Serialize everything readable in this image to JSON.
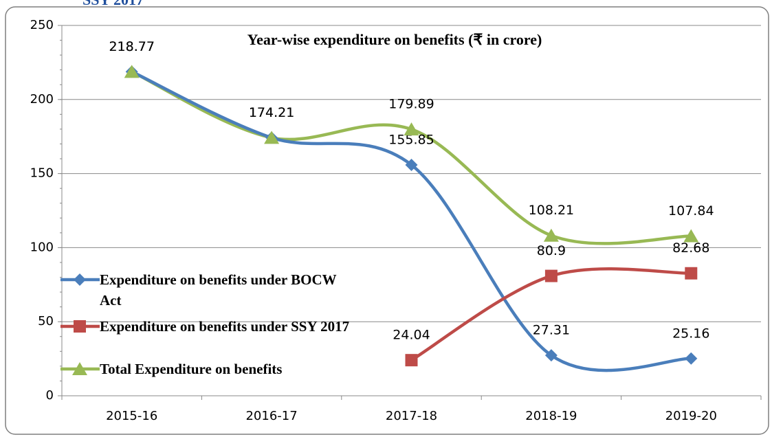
{
  "page_caption": "SSY 2017",
  "chart_data": {
    "type": "line",
    "title": "Year-wise expenditure on benefits (₹ in crore)",
    "categories": [
      "2015-16",
      "2016-17",
      "2017-18",
      "2018-19",
      "2019-20"
    ],
    "series": [
      {
        "name": "Expenditure on benefits under BOCW Act",
        "color": "#4a7ebb",
        "marker": "diamond",
        "values": [
          218.77,
          174.21,
          155.85,
          27.31,
          25.16
        ]
      },
      {
        "name": "Expenditure on benefits under SSY 2017",
        "color": "#be4b48",
        "marker": "square",
        "values": [
          null,
          null,
          24.04,
          80.9,
          82.68
        ]
      },
      {
        "name": "Total Expenditure on benefits",
        "color": "#98b954",
        "marker": "triangle",
        "values": [
          218.77,
          174.21,
          179.89,
          108.21,
          107.84
        ]
      }
    ],
    "ylim": [
      0,
      250
    ],
    "yticks": [
      0,
      50,
      100,
      150,
      200,
      250
    ],
    "grid": true,
    "smooth": true,
    "legend": "left"
  }
}
